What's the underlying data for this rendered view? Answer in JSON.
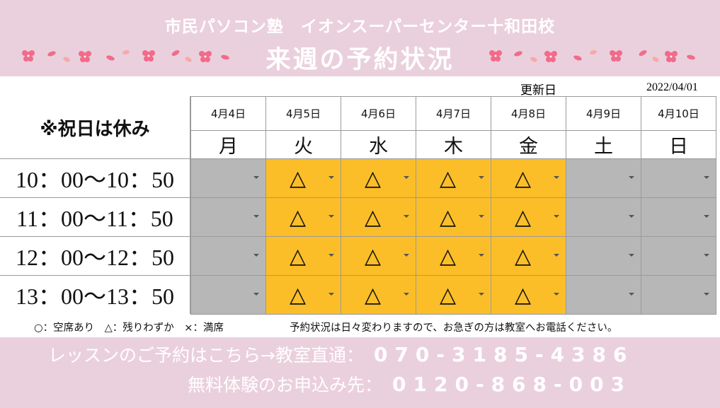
{
  "header": {
    "school_name": "市民パソコン塾　イオンスーパーセンター十和田校",
    "title": "来週の予約状況",
    "decoration_icon": "cherry-blossom-icon",
    "background_color": "#ead0dc"
  },
  "updated": {
    "label": "更新日",
    "date": "2022/04/01"
  },
  "schedule": {
    "holiday_note": "※祝日は休み",
    "days": [
      {
        "date": "4月4日",
        "weekday": "月"
      },
      {
        "date": "4月5日",
        "weekday": "火"
      },
      {
        "date": "4月6日",
        "weekday": "水"
      },
      {
        "date": "4月7日",
        "weekday": "木"
      },
      {
        "date": "4月8日",
        "weekday": "金"
      },
      {
        "date": "4月9日",
        "weekday": "土"
      },
      {
        "date": "4月10日",
        "weekday": "日"
      }
    ],
    "time_slots": [
      {
        "time": "10：00〜10：50",
        "status": [
          "",
          "△",
          "△",
          "△",
          "△",
          "",
          ""
        ]
      },
      {
        "time": "11：00〜11：50",
        "status": [
          "",
          "△",
          "△",
          "△",
          "△",
          "",
          ""
        ]
      },
      {
        "time": "12：00〜12：50",
        "status": [
          "",
          "△",
          "△",
          "△",
          "△",
          "",
          ""
        ]
      },
      {
        "time": "13：00〜13：50",
        "status": [
          "",
          "△",
          "△",
          "△",
          "△",
          "",
          ""
        ]
      }
    ],
    "open_color": "#fbbe28",
    "closed_color": "#b7b7b7"
  },
  "legend": {
    "text": "○：空席あり　△：残りわずか　×：満席",
    "notice": "予約状況は日々変わりますので、お急ぎの方は教室へお電話ください。"
  },
  "footer": {
    "lesson_label": "レッスンのご予約はこちら→教室直通：",
    "lesson_phone": "070-3185-4386",
    "trial_label": "無料体験のお申込み先：",
    "trial_phone": "0120-868-003"
  }
}
